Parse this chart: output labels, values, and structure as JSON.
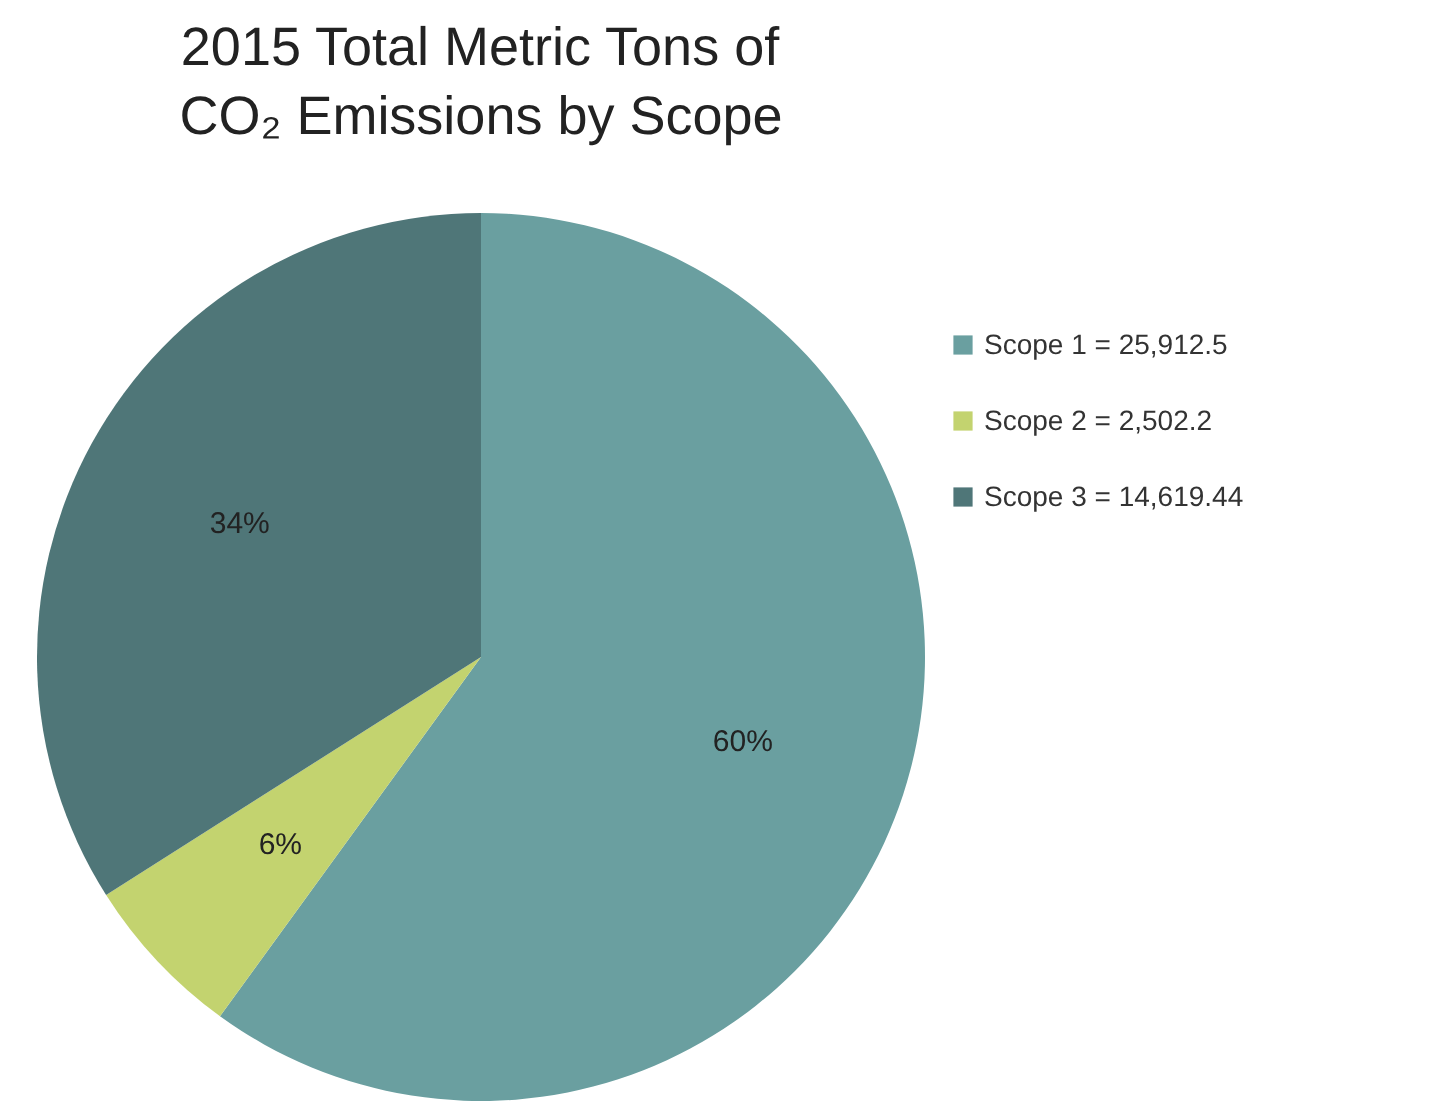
{
  "chart_data": {
    "type": "pie",
    "title": "2015 Total Metric Tons of CO₂ Emissions by Scope",
    "categories": [
      "Scope 1 = 25,912.5",
      "Scope 2 = 2,502.2",
      "Scope 3 = 14,619.44"
    ],
    "values": [
      60,
      6,
      34
    ],
    "colors": [
      "#6a9fa0",
      "#c3d36f",
      "#4f7678"
    ],
    "value_labels": [
      "60%",
      "6%",
      "34%"
    ],
    "legend": "right"
  }
}
